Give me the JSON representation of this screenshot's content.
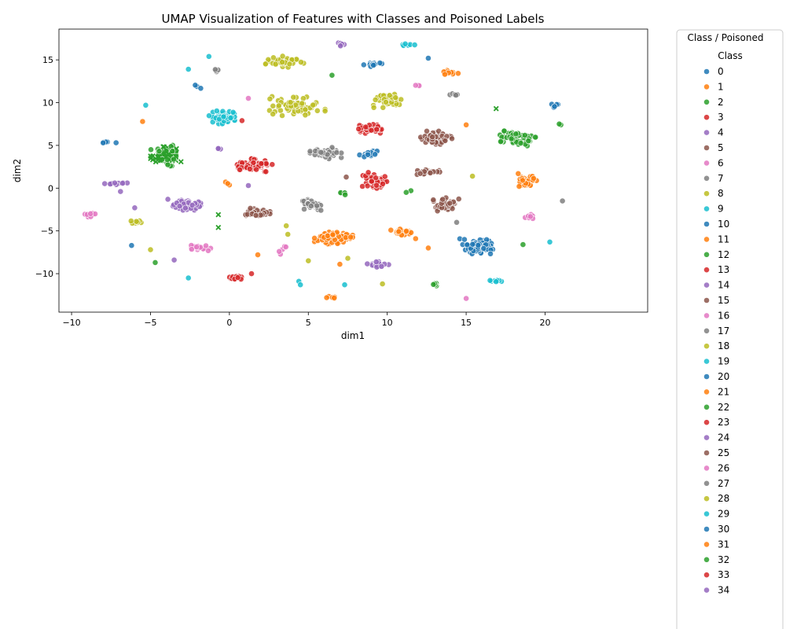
{
  "chart_data": {
    "type": "scatter",
    "title": "UMAP Visualization of Features with Classes and Poisoned Labels",
    "xlabel": "dim1",
    "ylabel": "dim2",
    "xlim": [
      -10.8,
      26.5
    ],
    "ylim": [
      -14.5,
      18.6
    ],
    "x_ticks": [
      -10,
      -5,
      0,
      5,
      10,
      15,
      20
    ],
    "y_ticks": [
      -10,
      -5,
      0,
      5,
      10,
      15
    ],
    "grid": false,
    "legend": {
      "title": "Class / Poisoned",
      "subtitle": "Class",
      "placement": "outside-right",
      "entries": [
        "0",
        "1",
        "2",
        "3",
        "4",
        "5",
        "6",
        "7",
        "8",
        "9",
        "10",
        "11",
        "12",
        "13",
        "14",
        "15",
        "16",
        "17",
        "18",
        "19",
        "20",
        "21",
        "22",
        "23",
        "24",
        "25",
        "26",
        "27",
        "28",
        "29",
        "30",
        "31",
        "32",
        "33",
        "34"
      ]
    },
    "palette": [
      "#1f77b4",
      "#ff7f0e",
      "#2ca02c",
      "#d62728",
      "#9467bd",
      "#8c564b",
      "#e377c2",
      "#7f7f7f",
      "#bcbd22",
      "#17becf"
    ],
    "clusters": [
      {
        "class": 18,
        "x": 3.5,
        "y": 14.8,
        "sx": 0.55,
        "sy": 0.3,
        "n": 40
      },
      {
        "class": 4,
        "x": 7.1,
        "y": 16.8,
        "sx": 0.2,
        "sy": 0.12,
        "n": 6
      },
      {
        "class": 10,
        "x": 9.0,
        "y": 14.5,
        "sx": 0.3,
        "sy": 0.15,
        "n": 14
      },
      {
        "class": 29,
        "x": 11.3,
        "y": 16.7,
        "sx": 0.2,
        "sy": 0.1,
        "n": 6
      },
      {
        "class": 31,
        "x": 13.9,
        "y": 13.5,
        "sx": 0.3,
        "sy": 0.12,
        "n": 10
      },
      {
        "class": 28,
        "x": 4.3,
        "y": 9.7,
        "sx": 0.8,
        "sy": 0.55,
        "n": 70
      },
      {
        "class": 18,
        "x": 10.0,
        "y": 10.3,
        "sx": 0.45,
        "sy": 0.4,
        "n": 45
      },
      {
        "class": 9,
        "x": -0.3,
        "y": 8.3,
        "sx": 0.45,
        "sy": 0.35,
        "n": 50
      },
      {
        "class": 7,
        "x": -0.8,
        "y": 13.8,
        "sx": 0.15,
        "sy": 0.1,
        "n": 4
      },
      {
        "class": 10,
        "x": -2.1,
        "y": 11.9,
        "sx": 0.15,
        "sy": 0.15,
        "n": 3
      },
      {
        "class": 17,
        "x": 14.2,
        "y": 11.0,
        "sx": 0.2,
        "sy": 0.1,
        "n": 5
      },
      {
        "class": 16,
        "x": 11.9,
        "y": 12.0,
        "sx": 0.1,
        "sy": 0.08,
        "n": 3
      },
      {
        "class": 22,
        "x": 18.1,
        "y": 5.8,
        "sx": 0.6,
        "sy": 0.4,
        "n": 60
      },
      {
        "class": 30,
        "x": 20.6,
        "y": 9.7,
        "sx": 0.2,
        "sy": 0.2,
        "n": 6
      },
      {
        "class": 23,
        "x": 8.9,
        "y": 6.9,
        "sx": 0.4,
        "sy": 0.25,
        "n": 30
      },
      {
        "class": 25,
        "x": 13.0,
        "y": 5.9,
        "sx": 0.5,
        "sy": 0.35,
        "n": 55
      },
      {
        "class": 27,
        "x": 6.1,
        "y": 4.1,
        "sx": 0.45,
        "sy": 0.3,
        "n": 45
      },
      {
        "class": 3,
        "x": 1.5,
        "y": 2.7,
        "sx": 0.55,
        "sy": 0.35,
        "n": 60
      },
      {
        "class": 10,
        "x": 8.8,
        "y": 4.0,
        "sx": 0.3,
        "sy": 0.15,
        "n": 14
      },
      {
        "class": 13,
        "x": 9.2,
        "y": 0.9,
        "sx": 0.35,
        "sy": 0.45,
        "n": 50
      },
      {
        "class": 15,
        "x": 12.6,
        "y": 1.9,
        "sx": 0.35,
        "sy": 0.15,
        "n": 18
      },
      {
        "class": 21,
        "x": 18.8,
        "y": 0.9,
        "sx": 0.3,
        "sy": 0.35,
        "n": 35
      },
      {
        "class": 15,
        "x": 13.7,
        "y": -1.9,
        "sx": 0.45,
        "sy": 0.35,
        "n": 50
      },
      {
        "class": 4,
        "x": -2.7,
        "y": -2.0,
        "sx": 0.4,
        "sy": 0.3,
        "n": 60
      },
      {
        "class": 5,
        "x": 1.8,
        "y": -2.9,
        "sx": 0.35,
        "sy": 0.25,
        "n": 40
      },
      {
        "class": 7,
        "x": 5.2,
        "y": -2.0,
        "sx": 0.4,
        "sy": 0.3,
        "n": 40
      },
      {
        "class": 1,
        "x": 6.6,
        "y": -5.8,
        "sx": 0.55,
        "sy": 0.4,
        "n": 70
      },
      {
        "class": 11,
        "x": 11.0,
        "y": -5.2,
        "sx": 0.35,
        "sy": 0.2,
        "n": 30
      },
      {
        "class": 30,
        "x": 15.7,
        "y": -6.8,
        "sx": 0.5,
        "sy": 0.4,
        "n": 70
      },
      {
        "class": 24,
        "x": 9.5,
        "y": -8.9,
        "sx": 0.35,
        "sy": 0.15,
        "n": 25
      },
      {
        "class": 26,
        "x": -1.8,
        "y": -7.0,
        "sx": 0.35,
        "sy": 0.15,
        "n": 20
      },
      {
        "class": 3,
        "x": 0.5,
        "y": -10.5,
        "sx": 0.25,
        "sy": 0.12,
        "n": 14
      },
      {
        "class": 31,
        "x": 6.6,
        "y": -12.8,
        "sx": 0.2,
        "sy": 0.08,
        "n": 6
      },
      {
        "class": 29,
        "x": 16.9,
        "y": -10.9,
        "sx": 0.25,
        "sy": 0.08,
        "n": 10
      },
      {
        "class": 32,
        "x": 13.0,
        "y": -11.4,
        "sx": 0.12,
        "sy": 0.12,
        "n": 5
      },
      {
        "class": 26,
        "x": -8.8,
        "y": -3.1,
        "sx": 0.3,
        "sy": 0.12,
        "n": 12
      },
      {
        "class": 18,
        "x": -5.9,
        "y": -4.0,
        "sx": 0.15,
        "sy": 0.18,
        "n": 10
      },
      {
        "class": 14,
        "x": -6.8,
        "y": 0.5,
        "sx": 0.5,
        "sy": 0.08,
        "n": 10
      },
      {
        "class": 26,
        "x": 19.0,
        "y": -3.3,
        "sx": 0.15,
        "sy": 0.15,
        "n": 8
      },
      {
        "class": 32,
        "x": 7.2,
        "y": -0.6,
        "sx": 0.15,
        "sy": 0.08,
        "n": 5
      },
      {
        "class": 30,
        "x": -7.7,
        "y": 5.4,
        "sx": 0.25,
        "sy": 0.05,
        "n": 4
      },
      {
        "class": 31,
        "x": -0.1,
        "y": 0.5,
        "sx": 0.15,
        "sy": 0.1,
        "n": 3
      },
      {
        "class": 4,
        "x": -0.6,
        "y": 4.7,
        "sx": 0.15,
        "sy": 0.1,
        "n": 3
      },
      {
        "class": 26,
        "x": 3.4,
        "y": -7.2,
        "sx": 0.15,
        "sy": 0.25,
        "n": 5
      }
    ],
    "poisoned_cluster": {
      "class": 2,
      "x": -4.0,
      "y": 3.8,
      "sx": 0.45,
      "sy": 0.55,
      "n": 70
    },
    "poisoned_points": [
      {
        "class": 2,
        "x": -0.7,
        "y": -3.1
      },
      {
        "class": 2,
        "x": -0.7,
        "y": -4.6
      },
      {
        "class": 2,
        "x": 16.9,
        "y": 9.3
      },
      {
        "class": 2,
        "x": -3.4,
        "y": 3.7
      }
    ],
    "singles": [
      {
        "class": 19,
        "x": -1.3,
        "y": 15.4
      },
      {
        "class": 19,
        "x": -2.6,
        "y": 13.9
      },
      {
        "class": 20,
        "x": 12.6,
        "y": 15.2
      },
      {
        "class": 2,
        "x": 6.5,
        "y": 13.2
      },
      {
        "class": 16,
        "x": 1.2,
        "y": 10.5
      },
      {
        "class": 9,
        "x": -5.3,
        "y": 9.7
      },
      {
        "class": 1,
        "x": -5.5,
        "y": 7.8
      },
      {
        "class": 0,
        "x": -8.0,
        "y": 5.3
      },
      {
        "class": 3,
        "x": 0.8,
        "y": 7.9
      },
      {
        "class": 11,
        "x": 15.0,
        "y": 7.4
      },
      {
        "class": 2,
        "x": 21.0,
        "y": 7.4
      },
      {
        "class": 22,
        "x": 20.9,
        "y": 7.5
      },
      {
        "class": 8,
        "x": 15.4,
        "y": 1.4
      },
      {
        "class": 11,
        "x": 18.3,
        "y": 1.7
      },
      {
        "class": 17,
        "x": 21.1,
        "y": -1.5
      },
      {
        "class": 2,
        "x": 11.5,
        "y": -0.3
      },
      {
        "class": 12,
        "x": 11.2,
        "y": -0.5
      },
      {
        "class": 24,
        "x": 1.2,
        "y": 0.3
      },
      {
        "class": 5,
        "x": 7.4,
        "y": 1.3
      },
      {
        "class": 24,
        "x": -3.9,
        "y": -1.3
      },
      {
        "class": 14,
        "x": -6.9,
        "y": -0.4
      },
      {
        "class": 4,
        "x": -6.0,
        "y": -2.3
      },
      {
        "class": 7,
        "x": 14.4,
        "y": -4.0
      },
      {
        "class": 8,
        "x": 3.6,
        "y": -4.4
      },
      {
        "class": 28,
        "x": 3.7,
        "y": -5.4
      },
      {
        "class": 0,
        "x": -6.2,
        "y": -6.7
      },
      {
        "class": 18,
        "x": -5.0,
        "y": -7.2
      },
      {
        "class": 2,
        "x": -4.7,
        "y": -8.7
      },
      {
        "class": 4,
        "x": -3.5,
        "y": -8.4
      },
      {
        "class": 21,
        "x": 1.8,
        "y": -7.8
      },
      {
        "class": 8,
        "x": 5.0,
        "y": -8.5
      },
      {
        "class": 28,
        "x": 7.5,
        "y": -8.2
      },
      {
        "class": 1,
        "x": 7.0,
        "y": -8.9
      },
      {
        "class": 31,
        "x": 12.6,
        "y": -7.0
      },
      {
        "class": 12,
        "x": 18.6,
        "y": -6.6
      },
      {
        "class": 9,
        "x": 20.3,
        "y": -6.3
      },
      {
        "class": 9,
        "x": -2.6,
        "y": -10.5
      },
      {
        "class": 3,
        "x": 1.4,
        "y": -10.0
      },
      {
        "class": 9,
        "x": 4.4,
        "y": -10.9
      },
      {
        "class": 19,
        "x": 4.5,
        "y": -11.3
      },
      {
        "class": 29,
        "x": 7.3,
        "y": -11.3
      },
      {
        "class": 8,
        "x": 9.7,
        "y": -11.2
      },
      {
        "class": 6,
        "x": 15.0,
        "y": -12.9
      },
      {
        "class": 11,
        "x": 11.8,
        "y": -5.9
      }
    ]
  }
}
